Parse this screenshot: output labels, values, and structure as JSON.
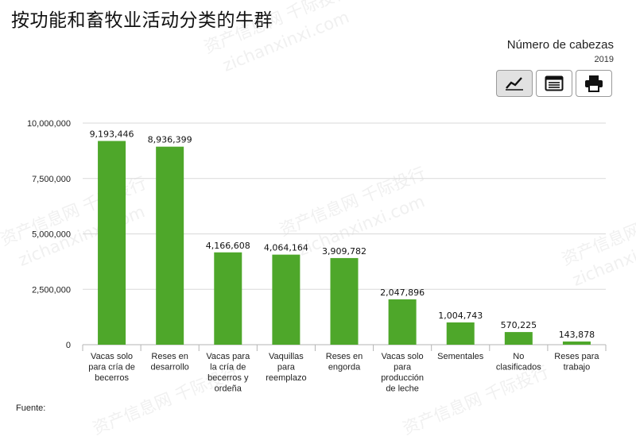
{
  "page": {
    "title": "按功能和畜牧业活动分类的牛群"
  },
  "header": {
    "unit_title": "Número de cabezas",
    "year": "2019"
  },
  "toolbar": [
    {
      "name": "line-chart-button",
      "icon": "line-chart-icon",
      "active": true
    },
    {
      "name": "table-view-button",
      "icon": "table-icon",
      "active": false
    },
    {
      "name": "print-button",
      "icon": "printer-icon",
      "active": false
    }
  ],
  "colors": {
    "bar": "#4ea72a",
    "grid": "#d9d9d9",
    "axis": "#b5b5b5"
  },
  "chart_data": {
    "type": "bar",
    "categories": [
      [
        "Vacas solo",
        "para cría de",
        "becerros"
      ],
      [
        "Reses en",
        "desarrollo"
      ],
      [
        "Vacas para",
        "la cría de",
        "becerros y",
        "ordeña"
      ],
      [
        "Vaquillas",
        "para",
        "reemplazo"
      ],
      [
        "Reses en",
        "engorda"
      ],
      [
        "Vacas solo",
        "para",
        "producción",
        "de leche"
      ],
      [
        "Sementales"
      ],
      [
        "No",
        "clasificados"
      ],
      [
        "Reses para",
        "trabajo"
      ]
    ],
    "values": [
      9193446,
      8936399,
      4166608,
      4064164,
      3909782,
      2047896,
      1004743,
      570225,
      143878
    ],
    "value_labels": [
      "9,193,446",
      "8,936,399",
      "4,166,608",
      "4,064,164",
      "3,909,782",
      "2,047,896",
      "1,004,743",
      "570,225",
      "143,878"
    ],
    "yticks": [
      0,
      2500000,
      5000000,
      7500000,
      10000000
    ],
    "ytick_labels": [
      "0",
      "2,500,000",
      "5,000,000",
      "7,500,000",
      "10,000,000"
    ],
    "ylim": [
      0,
      10000000
    ],
    "grid": true
  },
  "footer": {
    "source_label": "Fuente:"
  },
  "watermarks": [
    "资产信息网 千际投行",
    "zichanxinxi.com"
  ]
}
